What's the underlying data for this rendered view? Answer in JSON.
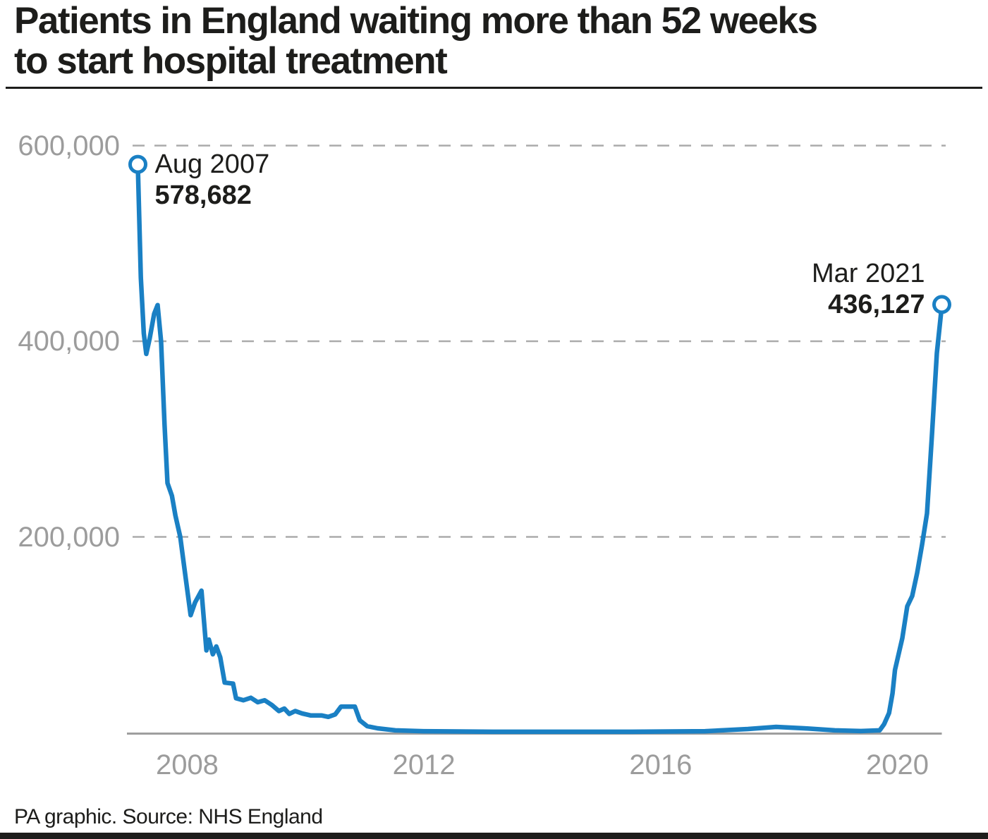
{
  "header": {
    "title_lines": [
      "Patients in England waiting more than 52 weeks",
      "to start hospital treatment"
    ]
  },
  "footer": {
    "credit": "PA graphic. Source: NHS England"
  },
  "colors": {
    "line": "#1a80c4",
    "grid": "#ababab",
    "axis": "#9e9e9e",
    "tick_text": "#9c9c9c",
    "text": "#1d1d1b"
  },
  "chart_data": {
    "type": "line",
    "title": "Patients in England waiting more than 52 weeks to start hospital treatment",
    "xlabel": "",
    "ylabel": "",
    "x_unit": "months since Aug 2007",
    "xlim_months": [
      0,
      163
    ],
    "ylim": [
      0,
      620000
    ],
    "grid": "dashed horizontal",
    "x_ticks": [
      {
        "label": "2008",
        "m": 10
      },
      {
        "label": "2012",
        "m": 58
      },
      {
        "label": "2016",
        "m": 106
      },
      {
        "label": "2020",
        "m": 154
      }
    ],
    "y_ticks": [
      {
        "label": "600,000",
        "v": 600000
      },
      {
        "label": "400,000",
        "v": 400000
      },
      {
        "label": "200,000",
        "v": 200000
      }
    ],
    "annotations": [
      {
        "label": "Aug 2007",
        "value": "578,682",
        "point": "start"
      },
      {
        "label": "Mar 2021",
        "value": "436,127",
        "point": "end"
      }
    ],
    "series": [
      {
        "name": "Patients waiting more than 52 weeks",
        "points": [
          [
            0,
            578682
          ],
          [
            0.6,
            465000
          ],
          [
            1.2,
            408000
          ],
          [
            1.7,
            387000
          ],
          [
            2.4,
            403000
          ],
          [
            3.3,
            428000
          ],
          [
            4,
            437000
          ],
          [
            4.7,
            400000
          ],
          [
            5.4,
            315000
          ],
          [
            6,
            255000
          ],
          [
            6.9,
            242000
          ],
          [
            7.6,
            222000
          ],
          [
            8.6,
            200000
          ],
          [
            9.7,
            158000
          ],
          [
            10.7,
            120000
          ],
          [
            11.6,
            133000
          ],
          [
            12.9,
            145000
          ],
          [
            13.9,
            84000
          ],
          [
            14.4,
            95000
          ],
          [
            15.2,
            80000
          ],
          [
            15.9,
            88000
          ],
          [
            16.7,
            77000
          ],
          [
            17.6,
            51000
          ],
          [
            19.3,
            50000
          ],
          [
            19.9,
            35000
          ],
          [
            21.4,
            33000
          ],
          [
            22.9,
            35500
          ],
          [
            24.3,
            31000
          ],
          [
            25.7,
            33000
          ],
          [
            27.2,
            28000
          ],
          [
            28.6,
            22000
          ],
          [
            29.7,
            24500
          ],
          [
            30.7,
            19000
          ],
          [
            31.9,
            22000
          ],
          [
            33.3,
            19500
          ],
          [
            35,
            17500
          ],
          [
            37.2,
            17500
          ],
          [
            38.6,
            16000
          ],
          [
            40,
            18500
          ],
          [
            41.2,
            26500
          ],
          [
            44,
            26500
          ],
          [
            45,
            12500
          ],
          [
            46.5,
            6500
          ],
          [
            48.6,
            4300
          ],
          [
            52.2,
            2200
          ],
          [
            57.9,
            1400
          ],
          [
            72,
            800
          ],
          [
            86,
            800
          ],
          [
            100,
            800
          ],
          [
            115,
            1400
          ],
          [
            123.7,
            3600
          ],
          [
            129.4,
            5800
          ],
          [
            135.1,
            4300
          ],
          [
            141.3,
            2200
          ],
          [
            146.6,
            1500
          ],
          [
            150.4,
            2200
          ],
          [
            151.3,
            8600
          ],
          [
            152.3,
            20000
          ],
          [
            153,
            40000
          ],
          [
            153.5,
            64000
          ],
          [
            155,
            96500
          ],
          [
            156,
            129000
          ],
          [
            157,
            139500
          ],
          [
            158,
            163000
          ],
          [
            159,
            192000
          ],
          [
            160,
            224000
          ],
          [
            161,
            304000
          ],
          [
            162,
            388000
          ],
          [
            163,
            436127
          ]
        ]
      }
    ]
  }
}
